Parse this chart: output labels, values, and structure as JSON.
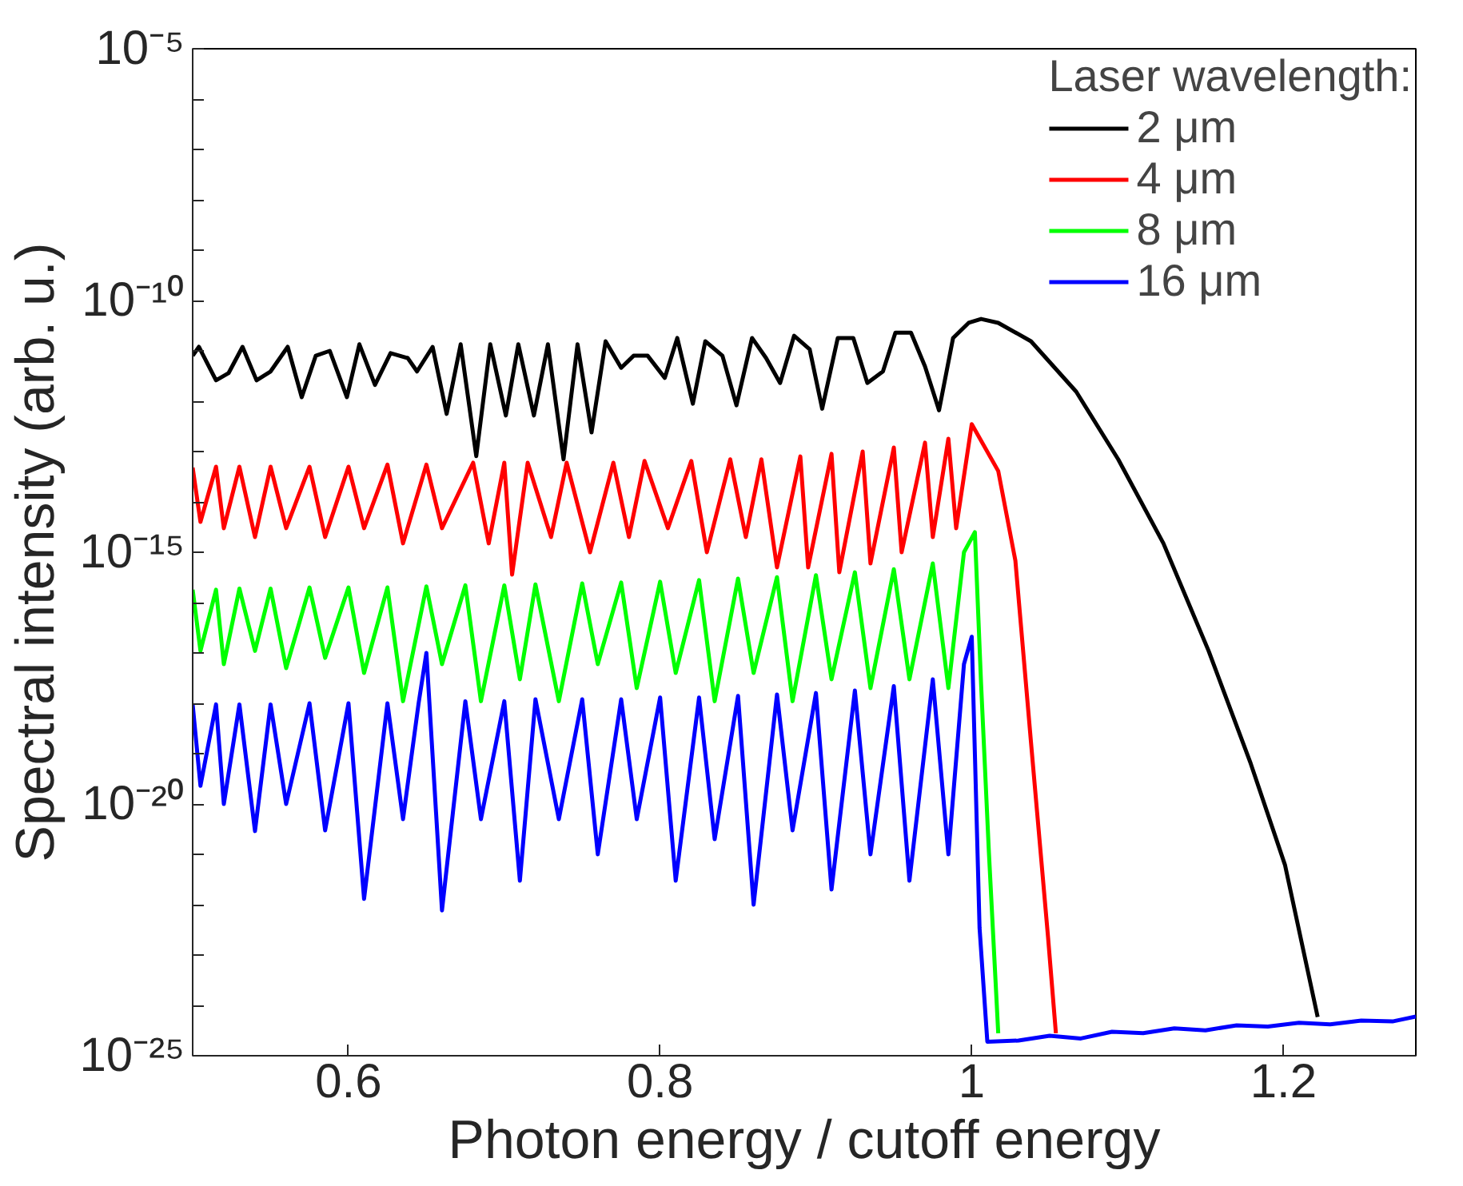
{
  "chart_data": {
    "type": "line",
    "xlabel": "Photon energy / cutoff energy",
    "ylabel": "Spectral intensity (arb. u.)",
    "legend_title": "Laser wavelength:",
    "legend": "top right",
    "log": "y",
    "grid": false,
    "marker": "none",
    "line_style": "solid",
    "xlim": [
      0.5,
      1.285
    ],
    "xticks": [
      0.6,
      0.8,
      1,
      1.2
    ],
    "ylim": [
      1e-25,
      1e-05
    ],
    "yticks": [
      {
        "value": 1e-25,
        "label": "10⁻²⁵"
      },
      {
        "value": 1e-24,
        "label": null
      },
      {
        "value": 1e-23,
        "label": null
      },
      {
        "value": 1e-22,
        "label": null
      },
      {
        "value": 1e-21,
        "label": null
      },
      {
        "value": 1e-20,
        "label": "10⁻²⁰"
      },
      {
        "value": 1e-19,
        "label": null
      },
      {
        "value": 1e-18,
        "label": null
      },
      {
        "value": 1e-17,
        "label": null
      },
      {
        "value": 1e-16,
        "label": null
      },
      {
        "value": 1e-15,
        "label": "10⁻¹⁵"
      },
      {
        "value": 1e-14,
        "label": null
      },
      {
        "value": 1e-13,
        "label": null
      },
      {
        "value": 1e-12,
        "label": null
      },
      {
        "value": 1e-11,
        "label": null
      },
      {
        "value": 1e-10,
        "label": "10⁻¹⁰"
      },
      {
        "value": 1e-09,
        "label": null
      },
      {
        "value": 1e-08,
        "label": null
      },
      {
        "value": 1e-07,
        "label": null
      },
      {
        "value": 1e-06,
        "label": null
      },
      {
        "value": 1e-05,
        "label": "10⁻⁵"
      }
    ],
    "series": [
      {
        "name": "2 μm",
        "color": "#000000",
        "x": [
          0.5,
          0.504,
          0.515,
          0.523,
          0.532,
          0.541,
          0.55,
          0.561,
          0.57,
          0.579,
          0.588,
          0.599,
          0.607,
          0.617,
          0.627,
          0.638,
          0.644,
          0.654,
          0.663,
          0.672,
          0.682,
          0.691,
          0.701,
          0.709,
          0.719,
          0.728,
          0.738,
          0.747,
          0.756,
          0.765,
          0.775,
          0.783,
          0.792,
          0.803,
          0.811,
          0.821,
          0.829,
          0.84,
          0.849,
          0.859,
          0.868,
          0.877,
          0.886,
          0.896,
          0.904,
          0.914,
          0.924,
          0.933,
          0.943,
          0.951,
          0.961,
          0.97,
          0.979,
          0.988,
          0.998,
          1.006,
          1.017,
          1.038,
          1.067,
          1.094,
          1.123,
          1.152,
          1.179,
          1.201,
          1.222
        ],
        "values": [
          8e-12,
          1.2e-11,
          2.6e-12,
          3.6e-12,
          1.2e-11,
          2.6e-12,
          3.9e-12,
          1.2e-11,
          1.2e-12,
          8e-12,
          1e-11,
          1.2e-12,
          1.35e-11,
          2.1e-12,
          9e-12,
          7.2e-12,
          3.9e-12,
          1.2e-11,
          5.6e-13,
          1.35e-11,
          8.1e-14,
          1.35e-11,
          5.2e-13,
          1.35e-11,
          5.2e-13,
          1.35e-11,
          7e-14,
          1.35e-11,
          2.4e-13,
          1.55e-11,
          4.6e-12,
          8e-12,
          8e-12,
          2.9e-12,
          1.8e-11,
          8.9e-13,
          1.55e-11,
          8e-12,
          8.3e-13,
          1.8e-11,
          7.2e-12,
          2.3e-12,
          2e-11,
          1.07e-11,
          7.1e-13,
          1.8e-11,
          1.8e-11,
          2.3e-12,
          3.9e-12,
          2.3e-11,
          2.3e-11,
          4.9e-12,
          6.6e-13,
          1.8e-11,
          3.6e-11,
          4.3e-11,
          3.6e-11,
          1.55e-11,
          1.55e-12,
          7e-14,
          1.5e-15,
          1.1e-17,
          6.4e-20,
          6.2e-22,
          5.9e-25
        ]
      },
      {
        "name": "4 μm",
        "color": "#ff0000",
        "x": [
          0.5,
          0.505,
          0.515,
          0.52,
          0.53,
          0.54,
          0.55,
          0.56,
          0.575,
          0.585,
          0.6,
          0.61,
          0.625,
          0.635,
          0.65,
          0.66,
          0.68,
          0.69,
          0.7,
          0.705,
          0.715,
          0.73,
          0.74,
          0.755,
          0.77,
          0.78,
          0.79,
          0.805,
          0.82,
          0.83,
          0.845,
          0.855,
          0.865,
          0.875,
          0.89,
          0.895,
          0.91,
          0.915,
          0.93,
          0.935,
          0.95,
          0.955,
          0.97,
          0.975,
          0.985,
          0.99,
          1.0,
          1.017,
          1.028,
          1.038,
          1.049,
          1.054
        ],
        "values": [
          4.8e-14,
          4e-15,
          5e-14,
          3e-15,
          5e-14,
          2e-15,
          5e-14,
          3e-15,
          5e-14,
          2e-15,
          5e-14,
          3e-15,
          5.5e-14,
          1.5e-15,
          5.5e-14,
          3e-15,
          6e-14,
          1.5e-15,
          6e-14,
          3.6e-16,
          6e-14,
          2e-15,
          6e-14,
          1e-15,
          6e-14,
          2e-15,
          6.5e-14,
          3e-15,
          6.5e-14,
          1e-15,
          7e-14,
          2e-15,
          7e-14,
          5e-16,
          8e-14,
          5e-16,
          9e-14,
          4e-16,
          1e-13,
          6e-16,
          1.2e-13,
          1e-15,
          1.5e-13,
          2e-15,
          1.8e-13,
          3e-15,
          3.5e-13,
          4.1e-14,
          6.8e-16,
          1.7e-19,
          2.2e-23,
          2.8e-25
        ]
      },
      {
        "name": "8 μm",
        "color": "#00ff00",
        "x": [
          0.5,
          0.505,
          0.515,
          0.52,
          0.53,
          0.54,
          0.55,
          0.56,
          0.575,
          0.585,
          0.6,
          0.61,
          0.625,
          0.635,
          0.65,
          0.66,
          0.675,
          0.685,
          0.7,
          0.71,
          0.72,
          0.735,
          0.75,
          0.76,
          0.775,
          0.785,
          0.8,
          0.81,
          0.825,
          0.835,
          0.85,
          0.86,
          0.875,
          0.885,
          0.9,
          0.91,
          0.925,
          0.935,
          0.95,
          0.96,
          0.975,
          0.985,
          0.995,
          1.002,
          1.006,
          1.011,
          1.017
        ],
        "values": [
          1.8e-16,
          1.1e-17,
          1.8e-16,
          6e-18,
          1.9e-16,
          1.1e-17,
          1.9e-16,
          5e-18,
          2e-16,
          8e-18,
          2e-16,
          4e-18,
          2e-16,
          1.1e-18,
          2.1e-16,
          6e-18,
          2.2e-16,
          1.1e-18,
          2.2e-16,
          3e-18,
          2.3e-16,
          1.1e-18,
          2.4e-16,
          6e-18,
          2.5e-16,
          2e-18,
          2.6e-16,
          4e-18,
          2.8e-16,
          1.1e-18,
          3e-16,
          4e-18,
          3.2e-16,
          1.1e-18,
          3.5e-16,
          3e-18,
          4e-16,
          2e-18,
          4.6e-16,
          3e-18,
          6e-16,
          2e-18,
          1e-15,
          2.5e-15,
          2.4e-18,
          1.1e-21,
          2.8e-25
        ]
      },
      {
        "name": "16 μm",
        "color": "#0000ff",
        "x": [
          0.5,
          0.505,
          0.515,
          0.52,
          0.53,
          0.54,
          0.55,
          0.56,
          0.575,
          0.585,
          0.6,
          0.61,
          0.625,
          0.635,
          0.645,
          0.65,
          0.66,
          0.675,
          0.685,
          0.7,
          0.71,
          0.72,
          0.735,
          0.75,
          0.76,
          0.775,
          0.785,
          0.8,
          0.81,
          0.825,
          0.835,
          0.85,
          0.86,
          0.875,
          0.885,
          0.9,
          0.91,
          0.925,
          0.935,
          0.95,
          0.96,
          0.975,
          0.985,
          0.995,
          1.0,
          1.005,
          1.01,
          1.03,
          1.05,
          1.07,
          1.09,
          1.11,
          1.13,
          1.15,
          1.17,
          1.19,
          1.21,
          1.23,
          1.25,
          1.27,
          1.285
        ],
        "values": [
          9.5e-19,
          2.3e-20,
          9.5e-19,
          1e-20,
          9.5e-19,
          2.9e-21,
          9.5e-19,
          1e-20,
          1e-18,
          3e-21,
          1e-18,
          1.3e-22,
          1e-18,
          5e-21,
          1e-18,
          1e-17,
          7.7e-23,
          1.1e-18,
          5e-21,
          1.1e-18,
          3e-22,
          1.2e-18,
          5e-21,
          1.2e-18,
          1e-21,
          1.2e-18,
          5e-21,
          1.3e-18,
          3e-22,
          1.3e-18,
          2e-21,
          1.4e-18,
          1e-22,
          1.5e-18,
          3e-21,
          1.6e-18,
          2e-22,
          1.8e-18,
          1e-21,
          2.2e-18,
          3e-22,
          3e-18,
          1e-21,
          6e-18,
          2.1e-17,
          3.5e-23,
          1.9e-25,
          2e-25,
          2.5e-25,
          2.2e-25,
          3e-25,
          2.8e-25,
          3.5e-25,
          3.2e-25,
          4e-25,
          3.8e-25,
          4.5e-25,
          4.2e-25,
          5e-25,
          4.8e-25,
          6e-25
        ]
      }
    ]
  }
}
